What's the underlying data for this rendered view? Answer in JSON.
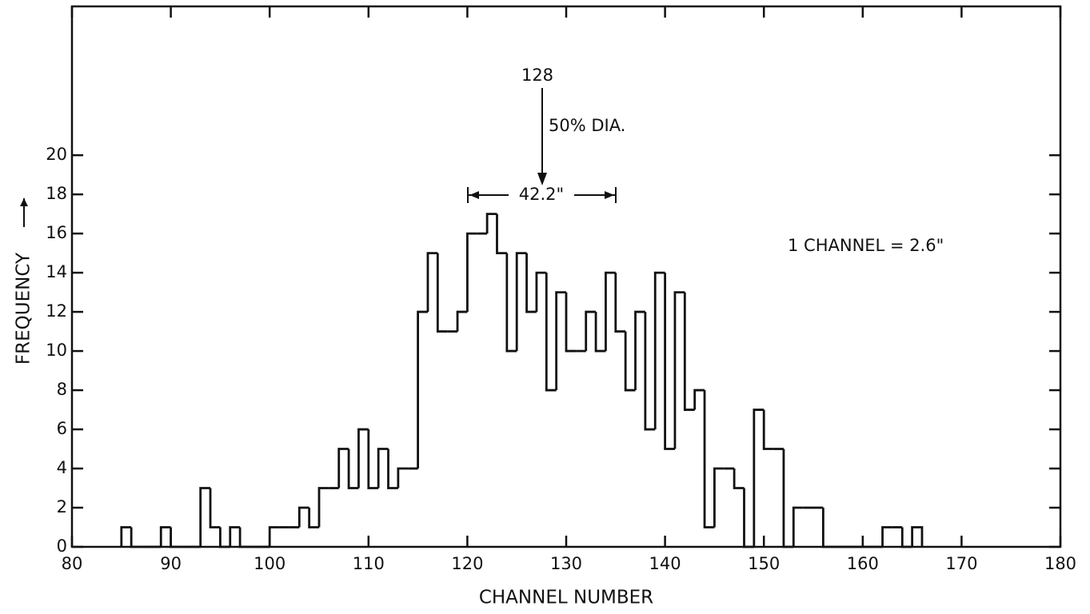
{
  "chart_data": {
    "type": "histogram",
    "x_label": "CHANNEL NUMBER",
    "y_label": "FREQUENCY",
    "annotations": [
      "128",
      "50% DIA.",
      "42.2\"",
      "1 CHANNEL = 2.6\""
    ],
    "color": "#111111",
    "bins": [
      85,
      86,
      87,
      88,
      89,
      90,
      91,
      92,
      93,
      94,
      95,
      96,
      97,
      98,
      99,
      100,
      101,
      102,
      103,
      104,
      105,
      106,
      107,
      108,
      109,
      110,
      111,
      112,
      113,
      114,
      115,
      116,
      117,
      118,
      119,
      120,
      121,
      122,
      123,
      124,
      125,
      126,
      127,
      128,
      129,
      130,
      131,
      132,
      133,
      134,
      135,
      136,
      137,
      138,
      139,
      140,
      141,
      142,
      143,
      144,
      145,
      146,
      147,
      148,
      149,
      150,
      151,
      152,
      153,
      154,
      155,
      156,
      157,
      158,
      159,
      160,
      161,
      162,
      163,
      164,
      165,
      166
    ],
    "values": [
      1,
      0,
      0,
      0,
      1,
      0,
      0,
      0,
      3,
      1,
      0,
      1,
      0,
      0,
      0,
      1,
      1,
      1,
      2,
      1,
      3,
      3,
      5,
      3,
      6,
      3,
      5,
      3,
      4,
      4,
      12,
      15,
      11,
      11,
      12,
      16,
      16,
      17,
      15,
      10,
      15,
      12,
      14,
      8,
      13,
      10,
      10,
      12,
      10,
      14,
      11,
      8,
      12,
      6,
      14,
      5,
      13,
      7,
      8,
      1,
      4,
      4,
      3,
      0,
      7,
      5,
      5,
      0,
      2,
      2,
      2,
      0,
      0,
      0,
      0,
      0,
      0,
      1,
      1,
      0,
      1
    ],
    "xlim": [
      80,
      180
    ],
    "ylim": [
      0,
      27.6
    ],
    "xticks": [
      80,
      90,
      100,
      110,
      120,
      130,
      140,
      150,
      160,
      170,
      180
    ],
    "yticks": [
      0,
      2,
      4,
      6,
      8,
      10,
      12,
      14,
      16,
      18,
      20
    ]
  }
}
